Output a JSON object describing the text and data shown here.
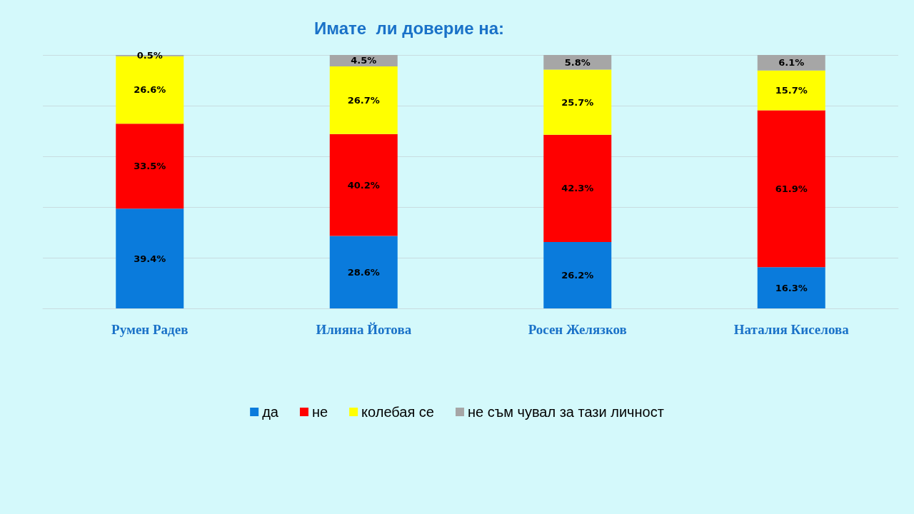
{
  "chart_data": {
    "type": "bar",
    "title": "Имате  ли доверие на:",
    "categories": [
      "Румен Радев",
      "Илияна Йотова",
      "Росен Желязков",
      "Наталия Киселова"
    ],
    "stacked": true,
    "grid": "y",
    "legend": "bottom",
    "tick_labels": "x",
    "ylim": [
      0,
      100
    ],
    "yticks": [
      {
        "value": 0,
        "label": null
      },
      {
        "value": 20,
        "label": null
      },
      {
        "value": 40,
        "label": null
      },
      {
        "value": 60,
        "label": null
      },
      {
        "value": 80,
        "label": null
      },
      {
        "value": 100,
        "label": null
      }
    ],
    "series": [
      {
        "name": "да",
        "color": "#0a7bdc",
        "values": [
          39.4,
          28.6,
          26.2,
          16.3
        ],
        "value_labels": [
          "39.4%",
          "28.6%",
          "26.2%",
          "16.3%"
        ]
      },
      {
        "name": "не",
        "color": "#ff0000",
        "values": [
          33.5,
          40.2,
          42.3,
          61.9
        ],
        "value_labels": [
          "33.5%",
          "40.2%",
          "42.3%",
          "61.9%"
        ]
      },
      {
        "name": "колебая се",
        "color": "#ffff00",
        "values": [
          26.6,
          26.7,
          25.7,
          15.7
        ],
        "value_labels": [
          "26.6%",
          "26.7%",
          "25.7%",
          "15.7%"
        ]
      },
      {
        "name": "не съм чувал за тази личност",
        "color": "#a6a6a6",
        "values": [
          0.5,
          4.5,
          5.8,
          6.1
        ],
        "value_labels": [
          "0.5%",
          "4.5%",
          "5.8%",
          "6.1%"
        ]
      }
    ]
  }
}
